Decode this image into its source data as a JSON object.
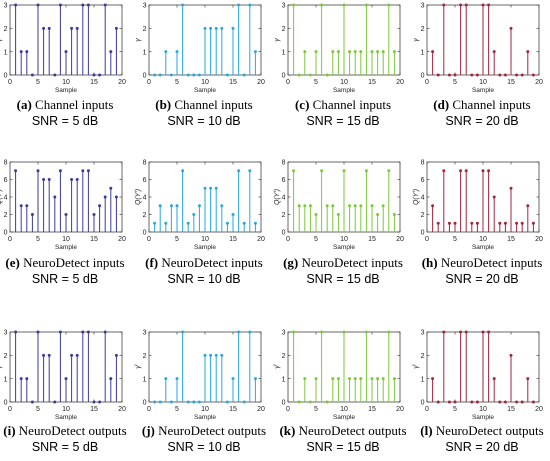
{
  "chart_data": [
    {
      "type": "stem",
      "panel": "a",
      "color": "#3b3b99",
      "ylabel": "γ",
      "xlabel": "Sample",
      "xlim": [
        0,
        20
      ],
      "ylim": [
        0,
        3
      ],
      "yticks": [
        0,
        1,
        2,
        3
      ],
      "xticks": [
        0,
        5,
        10,
        15,
        20
      ],
      "x": [
        1,
        2,
        3,
        4,
        5,
        6,
        7,
        8,
        9,
        10,
        11,
        12,
        13,
        14,
        15,
        16,
        17,
        18,
        19
      ],
      "values": [
        3,
        1,
        1,
        0,
        3,
        2,
        2,
        0,
        3,
        1,
        2,
        2,
        3,
        3,
        0,
        0,
        3,
        1,
        2
      ]
    },
    {
      "type": "stem",
      "panel": "b",
      "color": "#2aa7dc",
      "ylabel": "γ",
      "xlabel": "Sample",
      "xlim": [
        0,
        20
      ],
      "ylim": [
        0,
        3
      ],
      "yticks": [
        0,
        1,
        2,
        3
      ],
      "xticks": [
        0,
        5,
        10,
        15,
        20
      ],
      "x": [
        1,
        2,
        3,
        4,
        5,
        6,
        7,
        8,
        9,
        10,
        11,
        12,
        13,
        14,
        15,
        16,
        17,
        18,
        19
      ],
      "values": [
        0,
        0,
        1,
        0,
        1,
        3,
        0,
        0,
        0,
        2,
        2,
        2,
        2,
        0,
        2,
        3,
        0,
        3,
        1
      ]
    },
    {
      "type": "stem",
      "panel": "c",
      "color": "#7cc83a",
      "ylabel": "γ",
      "xlabel": "Sample",
      "xlim": [
        0,
        20
      ],
      "ylim": [
        0,
        3
      ],
      "yticks": [
        0,
        1,
        2,
        3
      ],
      "xticks": [
        0,
        5,
        10,
        15,
        20
      ],
      "x": [
        1,
        2,
        3,
        4,
        5,
        6,
        7,
        8,
        9,
        10,
        11,
        12,
        13,
        14,
        15,
        16,
        17,
        18,
        19
      ],
      "values": [
        3,
        0,
        1,
        0,
        1,
        3,
        0,
        1,
        1,
        3,
        1,
        1,
        1,
        3,
        1,
        1,
        1,
        3,
        1
      ]
    },
    {
      "type": "stem",
      "panel": "d",
      "color": "#a3263d",
      "ylabel": "γ",
      "xlabel": "Sample",
      "xlim": [
        0,
        20
      ],
      "ylim": [
        0,
        3
      ],
      "yticks": [
        0,
        1,
        2,
        3
      ],
      "xticks": [
        0,
        5,
        10,
        15,
        20
      ],
      "x": [
        1,
        2,
        3,
        4,
        5,
        6,
        7,
        8,
        9,
        10,
        11,
        12,
        13,
        14,
        15,
        16,
        17,
        18,
        19
      ],
      "values": [
        1,
        0,
        3,
        0,
        0,
        3,
        3,
        0,
        0,
        3,
        3,
        1,
        0,
        0,
        2,
        0,
        0,
        1,
        0
      ]
    },
    {
      "type": "stem",
      "panel": "e",
      "color": "#3b3b99",
      "ylabel": "Q(Y′)",
      "xlabel": "Sample",
      "xlim": [
        0,
        20
      ],
      "ylim": [
        0,
        8
      ],
      "yticks": [
        0,
        2,
        4,
        6,
        8
      ],
      "xticks": [
        0,
        5,
        10,
        15,
        20
      ],
      "x": [
        1,
        2,
        3,
        4,
        5,
        6,
        7,
        8,
        9,
        10,
        11,
        12,
        13,
        14,
        15,
        16,
        17,
        18,
        19
      ],
      "values": [
        7,
        3,
        3,
        2,
        7,
        6,
        6,
        4,
        7,
        2,
        6,
        6,
        7,
        7,
        2,
        3,
        4,
        5,
        4
      ]
    },
    {
      "type": "stem",
      "panel": "f",
      "color": "#2aa7dc",
      "ylabel": "Q(Y′)",
      "xlabel": "Sample",
      "xlim": [
        0,
        20
      ],
      "ylim": [
        0,
        8
      ],
      "yticks": [
        0,
        2,
        4,
        6,
        8
      ],
      "xticks": [
        0,
        5,
        10,
        15,
        20
      ],
      "x": [
        1,
        2,
        3,
        4,
        5,
        6,
        7,
        8,
        9,
        10,
        11,
        12,
        13,
        14,
        15,
        16,
        17,
        18,
        19
      ],
      "values": [
        1,
        3,
        1,
        3,
        3,
        7,
        1,
        2,
        3,
        5,
        5,
        5,
        3,
        1,
        2,
        7,
        1,
        7,
        1
      ]
    },
    {
      "type": "stem",
      "panel": "g",
      "color": "#7cc83a",
      "ylabel": "Q(Y′)",
      "xlabel": "Sample",
      "xlim": [
        0,
        20
      ],
      "ylim": [
        0,
        8
      ],
      "yticks": [
        0,
        2,
        4,
        6,
        8
      ],
      "xticks": [
        0,
        5,
        10,
        15,
        20
      ],
      "x": [
        1,
        2,
        3,
        4,
        5,
        6,
        7,
        8,
        9,
        10,
        11,
        12,
        13,
        14,
        15,
        16,
        17,
        18,
        19
      ],
      "values": [
        7,
        3,
        3,
        3,
        2,
        7,
        3,
        3,
        2,
        7,
        3,
        3,
        3,
        7,
        3,
        2,
        3,
        7,
        2
      ]
    },
    {
      "type": "stem",
      "panel": "h",
      "color": "#a3263d",
      "ylabel": "Q(Y′)",
      "xlabel": "Sample",
      "xlim": [
        0,
        20
      ],
      "ylim": [
        0,
        8
      ],
      "yticks": [
        0,
        2,
        4,
        6,
        8
      ],
      "xticks": [
        0,
        5,
        10,
        15,
        20
      ],
      "x": [
        1,
        2,
        3,
        4,
        5,
        6,
        7,
        8,
        9,
        10,
        11,
        12,
        13,
        14,
        15,
        16,
        17,
        18,
        19
      ],
      "values": [
        3,
        1,
        7,
        1,
        1,
        7,
        7,
        1,
        1,
        7,
        7,
        4,
        1,
        1,
        5,
        1,
        1,
        3,
        1
      ]
    },
    {
      "type": "stem",
      "panel": "i",
      "color": "#3b3b99",
      "ylabel": "γ̂",
      "xlabel": "Sample",
      "xlim": [
        0,
        20
      ],
      "ylim": [
        0,
        3
      ],
      "yticks": [
        0,
        1,
        2,
        3
      ],
      "xticks": [
        0,
        5,
        10,
        15,
        20
      ],
      "x": [
        1,
        2,
        3,
        4,
        5,
        6,
        7,
        8,
        9,
        10,
        11,
        12,
        13,
        14,
        15,
        16,
        17,
        18,
        19
      ],
      "values": [
        3,
        1,
        1,
        0,
        3,
        2,
        2,
        0,
        3,
        1,
        2,
        2,
        3,
        3,
        0,
        0,
        3,
        1,
        2
      ]
    },
    {
      "type": "stem",
      "panel": "j",
      "color": "#2aa7dc",
      "ylabel": "γ̂",
      "xlabel": "Sample",
      "xlim": [
        0,
        20
      ],
      "ylim": [
        0,
        3
      ],
      "yticks": [
        0,
        1,
        2,
        3
      ],
      "xticks": [
        0,
        5,
        10,
        15,
        20
      ],
      "x": [
        1,
        2,
        3,
        4,
        5,
        6,
        7,
        8,
        9,
        10,
        11,
        12,
        13,
        14,
        15,
        16,
        17,
        18,
        19
      ],
      "values": [
        0,
        0,
        1,
        0,
        1,
        3,
        0,
        0,
        0,
        2,
        2,
        2,
        2,
        0,
        1,
        3,
        0,
        3,
        1
      ]
    },
    {
      "type": "stem",
      "panel": "k",
      "color": "#7cc83a",
      "ylabel": "γ̂",
      "xlabel": "Sample",
      "xlim": [
        0,
        20
      ],
      "ylim": [
        0,
        3
      ],
      "yticks": [
        0,
        1,
        2,
        3
      ],
      "xticks": [
        0,
        5,
        10,
        15,
        20
      ],
      "x": [
        1,
        2,
        3,
        4,
        5,
        6,
        7,
        8,
        9,
        10,
        11,
        12,
        13,
        14,
        15,
        16,
        17,
        18,
        19
      ],
      "values": [
        3,
        0,
        1,
        0,
        1,
        3,
        0,
        1,
        1,
        3,
        1,
        1,
        1,
        3,
        1,
        1,
        1,
        3,
        1
      ]
    },
    {
      "type": "stem",
      "panel": "l",
      "color": "#a3263d",
      "ylabel": "γ̂",
      "xlabel": "Sample",
      "xlim": [
        0,
        20
      ],
      "ylim": [
        0,
        3
      ],
      "yticks": [
        0,
        1,
        2,
        3
      ],
      "xticks": [
        0,
        5,
        10,
        15,
        20
      ],
      "x": [
        1,
        2,
        3,
        4,
        5,
        6,
        7,
        8,
        9,
        10,
        11,
        12,
        13,
        14,
        15,
        16,
        17,
        18,
        19
      ],
      "values": [
        1,
        0,
        3,
        0,
        0,
        3,
        3,
        0,
        0,
        3,
        3,
        1,
        0,
        0,
        2,
        0,
        0,
        1,
        0
      ]
    }
  ],
  "captions": [
    {
      "label": "(a)",
      "title": "Channel inputs",
      "snr": "SNR = 5 dB"
    },
    {
      "label": "(b)",
      "title": "Channel inputs",
      "snr": "SNR = 10 dB"
    },
    {
      "label": "(c)",
      "title": "Channel inputs",
      "snr": "SNR = 15 dB"
    },
    {
      "label": "(d)",
      "title": "Channel inputs",
      "snr": "SNR = 20 dB"
    },
    {
      "label": "(e)",
      "title": "NeuroDetect inputs",
      "snr": "SNR = 5 dB"
    },
    {
      "label": "(f)",
      "title": "NeuroDetect inputs",
      "snr": "SNR = 10 dB"
    },
    {
      "label": "(g)",
      "title": "NeuroDetect inputs",
      "snr": "SNR = 15 dB"
    },
    {
      "label": "(h)",
      "title": "NeuroDetect inputs",
      "snr": "SNR = 20 dB"
    },
    {
      "label": "(i)",
      "title": "NeuroDetect outputs",
      "snr": "SNR = 5 dB"
    },
    {
      "label": "(j)",
      "title": "NeuroDetect outputs",
      "snr": "SNR = 10 dB"
    },
    {
      "label": "(k)",
      "title": "NeuroDetect outputs",
      "snr": "SNR = 15 dB"
    },
    {
      "label": "(l)",
      "title": "NeuroDetect outputs",
      "snr": "SNR = 20 dB"
    }
  ]
}
